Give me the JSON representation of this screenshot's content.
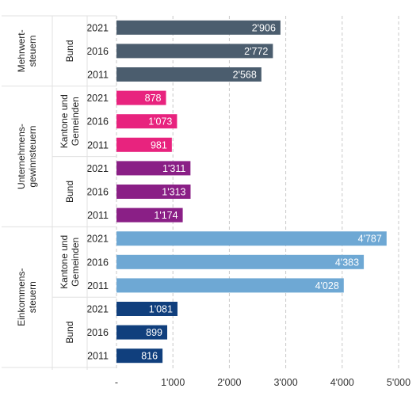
{
  "chart_data": {
    "type": "bar",
    "orientation": "horizontal",
    "xlim": [
      0,
      5000
    ],
    "x_ticks": [
      "-",
      "1'000",
      "2'000",
      "3'000",
      "4'000",
      "5'000"
    ],
    "grid": true,
    "groups": [
      {
        "category": "Mehrwert-\nsteuern",
        "level": "Bund",
        "color": "#4b5d6e",
        "bars": [
          {
            "year": "2021",
            "value": 2906,
            "label": "2'906"
          },
          {
            "year": "2016",
            "value": 2772,
            "label": "2'772"
          },
          {
            "year": "2011",
            "value": 2568,
            "label": "2'568"
          }
        ]
      },
      {
        "category": "Unternehmens-\ngewinnsteuern",
        "level": "Kantone und\nGemeinden",
        "color": "#e8237e",
        "bars": [
          {
            "year": "2021",
            "value": 878,
            "label": "878"
          },
          {
            "year": "2016",
            "value": 1073,
            "label": "1'073"
          },
          {
            "year": "2011",
            "value": 981,
            "label": "981"
          }
        ]
      },
      {
        "category": "Unternehmens-\ngewinnsteuern",
        "level": "Bund",
        "color": "#8a1f86",
        "bars": [
          {
            "year": "2021",
            "value": 1311,
            "label": "1'311"
          },
          {
            "year": "2016",
            "value": 1313,
            "label": "1'313"
          },
          {
            "year": "2011",
            "value": 1174,
            "label": "1'174"
          }
        ]
      },
      {
        "category": "Einkommens-\nsteuern",
        "level": "Kantone und\nGemeinden",
        "color": "#6ea8d4",
        "bars": [
          {
            "year": "2021",
            "value": 4787,
            "label": "4'787"
          },
          {
            "year": "2016",
            "value": 4383,
            "label": "4'383"
          },
          {
            "year": "2011",
            "value": 4028,
            "label": "4'028"
          }
        ]
      },
      {
        "category": "Einkommens-\nsteuern",
        "level": "Bund",
        "color": "#103f7d",
        "bars": [
          {
            "year": "2021",
            "value": 1081,
            "label": "1'081"
          },
          {
            "year": "2016",
            "value": 899,
            "label": "899"
          },
          {
            "year": "2011",
            "value": 816,
            "label": "816"
          }
        ]
      }
    ],
    "categories": [
      {
        "name": "Mehrwert-\nsteuern",
        "levels": [
          "Bund"
        ]
      },
      {
        "name": "Unternehmens-\ngewinnsteuern",
        "levels": [
          "Kantone und\nGemeinden",
          "Bund"
        ]
      },
      {
        "name": "Einkommens-\nsteuern",
        "levels": [
          "Kantone und\nGemeinden",
          "Bund"
        ]
      }
    ]
  }
}
